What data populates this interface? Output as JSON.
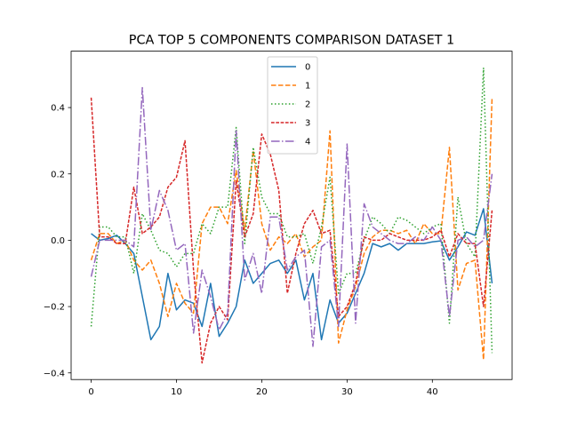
{
  "chart_data": {
    "type": "line",
    "title": "PCA TOP 5 COMPONENTS COMPARISON DATASET 1",
    "xlabel": "",
    "ylabel": "",
    "xlim": [
      -2.35,
      49.35
    ],
    "ylim": [
      -0.42,
      0.57
    ],
    "xticks": [
      0,
      10,
      20,
      30,
      40
    ],
    "yticks": [
      -0.4,
      -0.2,
      0.0,
      0.2,
      0.4
    ],
    "xtick_labels": [
      "0",
      "10",
      "20",
      "30",
      "40"
    ],
    "ytick_labels": [
      "−0.4",
      "−0.2",
      "0.0",
      "0.2",
      "0.4"
    ],
    "grid": false,
    "legend_position": "top-center",
    "x": [
      0,
      1,
      2,
      3,
      4,
      5,
      6,
      7,
      8,
      9,
      10,
      11,
      12,
      13,
      14,
      15,
      16,
      17,
      18,
      19,
      20,
      21,
      22,
      23,
      24,
      25,
      26,
      27,
      28,
      29,
      30,
      31,
      32,
      33,
      34,
      35,
      36,
      37,
      38,
      39,
      40,
      41,
      42,
      43,
      44,
      45,
      46,
      47
    ],
    "series": [
      {
        "name": "0",
        "color": "#1f77b4",
        "dash": "solid",
        "values": [
          0.02,
          0.0,
          0.005,
          0.015,
          -0.01,
          -0.04,
          -0.17,
          -0.3,
          -0.26,
          -0.1,
          -0.21,
          -0.18,
          -0.19,
          -0.26,
          -0.13,
          -0.29,
          -0.25,
          -0.2,
          -0.06,
          -0.13,
          -0.1,
          -0.07,
          -0.06,
          -0.1,
          -0.06,
          -0.18,
          -0.1,
          -0.3,
          -0.18,
          -0.25,
          -0.22,
          -0.16,
          -0.1,
          -0.01,
          -0.02,
          -0.01,
          -0.03,
          -0.01,
          -0.01,
          -0.01,
          -0.005,
          -0.002,
          -0.06,
          -0.02,
          0.025,
          0.015,
          0.095,
          -0.13
        ]
      },
      {
        "name": "1",
        "color": "#ff7f0e",
        "dash": "dashed",
        "values": [
          -0.06,
          0.02,
          0.02,
          -0.01,
          0.0,
          -0.06,
          -0.09,
          -0.06,
          -0.13,
          -0.23,
          -0.13,
          -0.19,
          -0.22,
          0.05,
          0.1,
          0.1,
          0.05,
          0.21,
          0.03,
          0.27,
          0.05,
          -0.03,
          0.01,
          -0.01,
          0.02,
          -0.05,
          -0.02,
          0.0,
          0.33,
          -0.31,
          -0.21,
          -0.14,
          -0.04,
          0.01,
          0.03,
          0.03,
          0.02,
          0.03,
          -0.01,
          0.05,
          0.02,
          0.02,
          0.28,
          -0.15,
          -0.07,
          -0.06,
          -0.36,
          0.43
        ]
      },
      {
        "name": "2",
        "color": "#2ca02c",
        "dash": "dotted",
        "values": [
          -0.26,
          0.04,
          0.04,
          0.01,
          0.01,
          -0.1,
          0.08,
          0.03,
          -0.03,
          -0.04,
          -0.08,
          -0.04,
          -0.04,
          0.05,
          0.02,
          0.1,
          0.1,
          0.34,
          -0.01,
          0.28,
          0.13,
          0.08,
          0.08,
          0.01,
          0.01,
          0.02,
          -0.07,
          0.04,
          0.19,
          -0.16,
          -0.1,
          -0.1,
          0.0,
          0.07,
          0.05,
          0.02,
          0.07,
          0.06,
          0.04,
          0.02,
          0.04,
          0.05,
          -0.25,
          0.13,
          -0.01,
          -0.05,
          0.52,
          -0.34
        ]
      },
      {
        "name": "3",
        "color": "#d62728",
        "dash": "densedash",
        "values": [
          0.43,
          0.01,
          0.01,
          -0.01,
          -0.01,
          0.16,
          0.02,
          0.04,
          0.07,
          0.16,
          0.19,
          0.3,
          -0.09,
          -0.37,
          -0.25,
          -0.2,
          -0.24,
          0.18,
          0.01,
          0.08,
          0.32,
          0.26,
          0.15,
          -0.16,
          -0.04,
          0.05,
          0.09,
          0.02,
          0.03,
          -0.23,
          -0.2,
          -0.13,
          0.01,
          0.0,
          0.0,
          0.02,
          0.01,
          0.0,
          0.0,
          0.0,
          0.01,
          0.03,
          -0.05,
          0.02,
          -0.01,
          -0.01,
          -0.2,
          0.09
        ]
      },
      {
        "name": "4",
        "color": "#9467bd",
        "dash": "dashdot",
        "values": [
          -0.11,
          0.0,
          0.0,
          0.0,
          0.0,
          -0.02,
          0.46,
          0.03,
          0.15,
          0.09,
          -0.03,
          -0.01,
          -0.28,
          -0.09,
          -0.17,
          -0.27,
          -0.22,
          0.33,
          -0.12,
          -0.04,
          -0.16,
          0.07,
          0.07,
          -0.09,
          -0.05,
          -0.03,
          -0.32,
          -0.02,
          0.0,
          -0.26,
          0.29,
          -0.25,
          0.11,
          0.04,
          0.02,
          0.0,
          -0.01,
          -0.01,
          0.01,
          0.0,
          0.04,
          0.0,
          -0.23,
          0.0,
          0.01,
          -0.02,
          0.0,
          0.2
        ]
      }
    ]
  }
}
